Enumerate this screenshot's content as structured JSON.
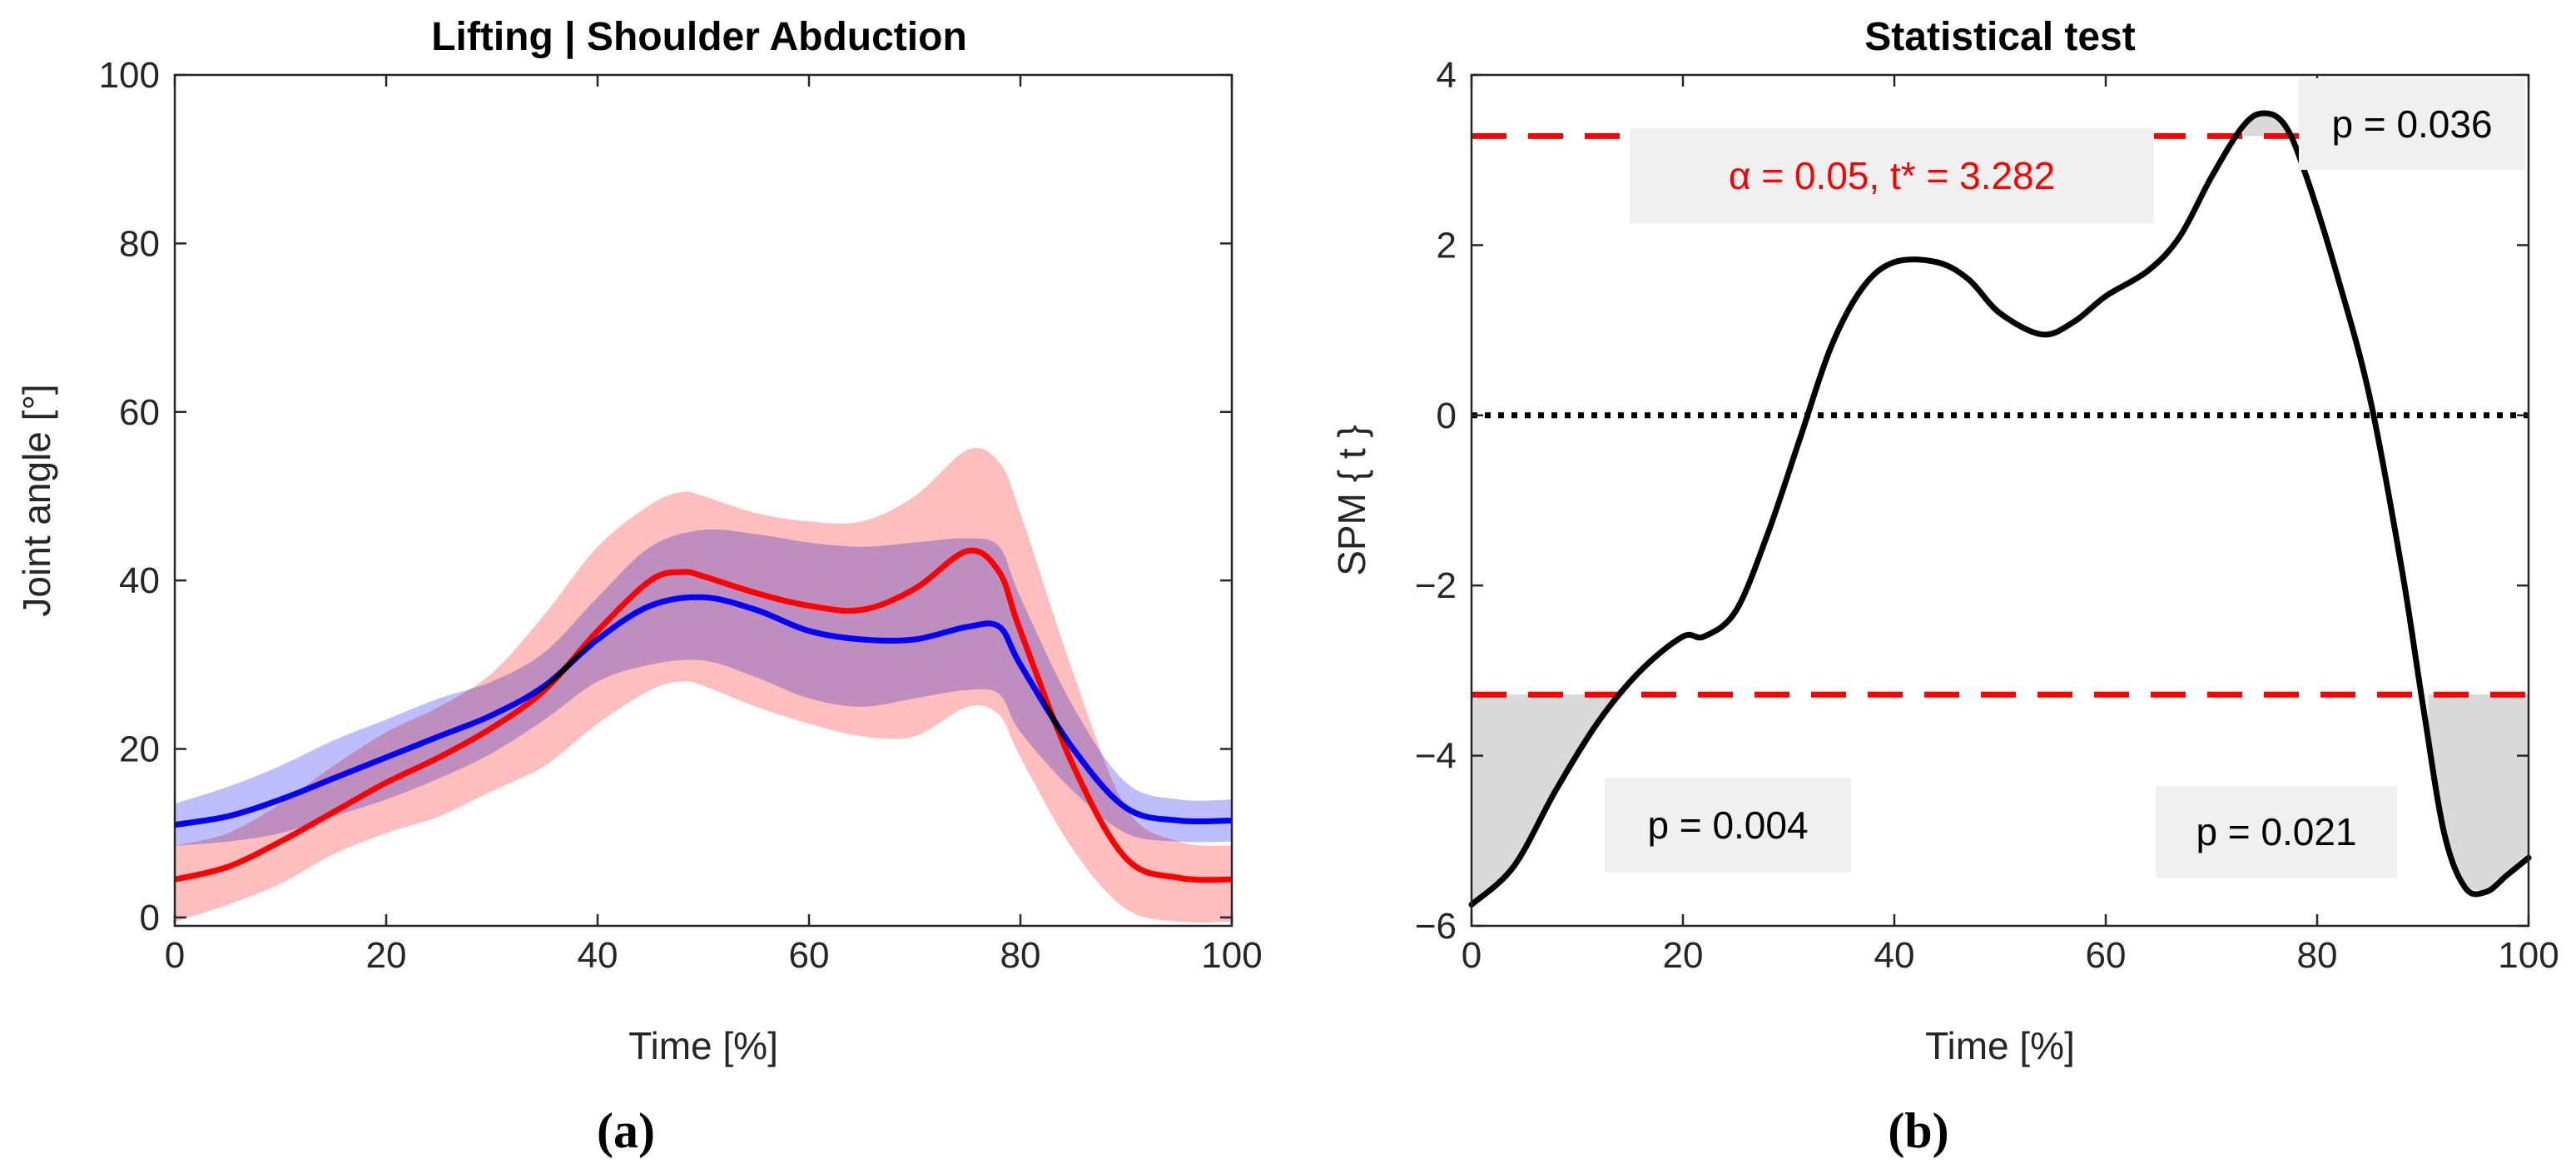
{
  "colors": {
    "red_line": "#ff0000",
    "red_band": "#ffb3b3",
    "blue_line": "#0000ff",
    "blue_band": "#b3b3ff",
    "overlap_line": "#b0004a",
    "threshold": "#ff0000",
    "spm_line": "#000000",
    "cluster_fill": "#d9d9d9",
    "annotation_box": "#f0f0f0"
  },
  "chart_data": [
    {
      "type": "line",
      "panel_label": "(a)",
      "title": "Lifting | Shoulder Abduction",
      "xlabel": "Time [%]",
      "ylabel": "Joint angle [°]",
      "xlim": [
        0,
        100
      ],
      "ylim": [
        -1,
        100
      ],
      "xticks": [
        0,
        20,
        40,
        60,
        80,
        100
      ],
      "yticks": [
        0,
        20,
        40,
        60,
        80,
        100
      ],
      "grid": false,
      "series": [
        {
          "color": "red",
          "x": [
            0,
            5,
            10,
            15,
            20,
            25,
            30,
            35,
            40,
            45,
            48,
            50,
            55,
            60,
            65,
            70,
            75,
            78,
            80,
            85,
            90,
            95,
            100
          ],
          "values": [
            4.5,
            6,
            9,
            12.5,
            16,
            19,
            22.5,
            27,
            34,
            40,
            41,
            40.5,
            38.5,
            37,
            36.5,
            39,
            43.5,
            41,
            34,
            18,
            7,
            4.7,
            4.5
          ],
          "upper": [
            8.5,
            10,
            13.5,
            18,
            22,
            25,
            29,
            36,
            44,
            49,
            50.5,
            50,
            48,
            47,
            47,
            50,
            55.5,
            54,
            48,
            29,
            13,
            9,
            8.5
          ],
          "lower": [
            -0.5,
            1.5,
            4,
            7.5,
            10,
            12,
            15,
            18,
            23,
            27,
            28,
            27.5,
            25,
            23,
            21.5,
            21.5,
            25,
            24,
            19,
            8,
            1,
            -0.5,
            -0.5
          ]
        },
        {
          "color": "blue",
          "x": [
            0,
            5,
            10,
            15,
            20,
            25,
            30,
            35,
            40,
            45,
            50,
            55,
            60,
            65,
            70,
            75,
            78,
            80,
            85,
            90,
            95,
            100
          ],
          "values": [
            11,
            12,
            14,
            16.5,
            19,
            21.5,
            24,
            27.5,
            33,
            37,
            38,
            36.5,
            34,
            33,
            33,
            34.5,
            34.5,
            30,
            20,
            13,
            11.5,
            11.5
          ],
          "upper": [
            13.5,
            15.5,
            18,
            21,
            23.5,
            26,
            28,
            31.5,
            38,
            44,
            46,
            45.5,
            44.5,
            44,
            44.5,
            45,
            44,
            38,
            25,
            16,
            14,
            14
          ],
          "lower": [
            8.5,
            9,
            10,
            12,
            14,
            16.5,
            19.5,
            23.5,
            28,
            30,
            30.5,
            28.5,
            26,
            25,
            26,
            27,
            26.5,
            22,
            15,
            10,
            9,
            9
          ]
        }
      ]
    },
    {
      "type": "line",
      "panel_label": "(b)",
      "title": "Statistical test",
      "xlabel": "Time [%]",
      "ylabel": "SPM { t }",
      "xlim": [
        0,
        100
      ],
      "ylim": [
        -6,
        4
      ],
      "xticks": [
        0,
        20,
        40,
        60,
        80,
        100
      ],
      "yticks": [
        -6,
        -4,
        -2,
        0,
        2,
        4
      ],
      "grid": false,
      "threshold": 3.282,
      "alpha": 0.05,
      "threshold_label": "α = 0.05,     t* = 3.282",
      "series": [
        {
          "x": [
            0,
            4,
            8,
            12,
            16,
            20,
            22,
            25,
            28,
            31,
            34,
            37,
            40,
            44,
            47,
            50,
            54,
            57,
            60,
            64,
            67,
            70,
            73,
            75,
            77,
            79,
            82,
            85,
            88,
            90,
            92,
            94,
            96,
            98,
            100
          ],
          "values": [
            -5.75,
            -5.3,
            -4.4,
            -3.6,
            -3.0,
            -2.6,
            -2.6,
            -2.3,
            -1.4,
            -0.3,
            0.8,
            1.5,
            1.8,
            1.8,
            1.6,
            1.2,
            0.95,
            1.1,
            1.4,
            1.7,
            2.1,
            2.8,
            3.4,
            3.55,
            3.4,
            2.8,
            1.6,
            0.2,
            -1.8,
            -3.4,
            -4.9,
            -5.55,
            -5.6,
            -5.4,
            -5.2
          ]
        }
      ],
      "clusters": [
        {
          "x_start": 0,
          "x_end": 14.5,
          "p_label": "p = 0.004"
        },
        {
          "x_start": 90.5,
          "x_end": 100,
          "p_label": "p = 0.021"
        },
        {
          "x_start": 73,
          "x_end": 77.5,
          "p_label": "p = 0.036"
        }
      ]
    }
  ]
}
